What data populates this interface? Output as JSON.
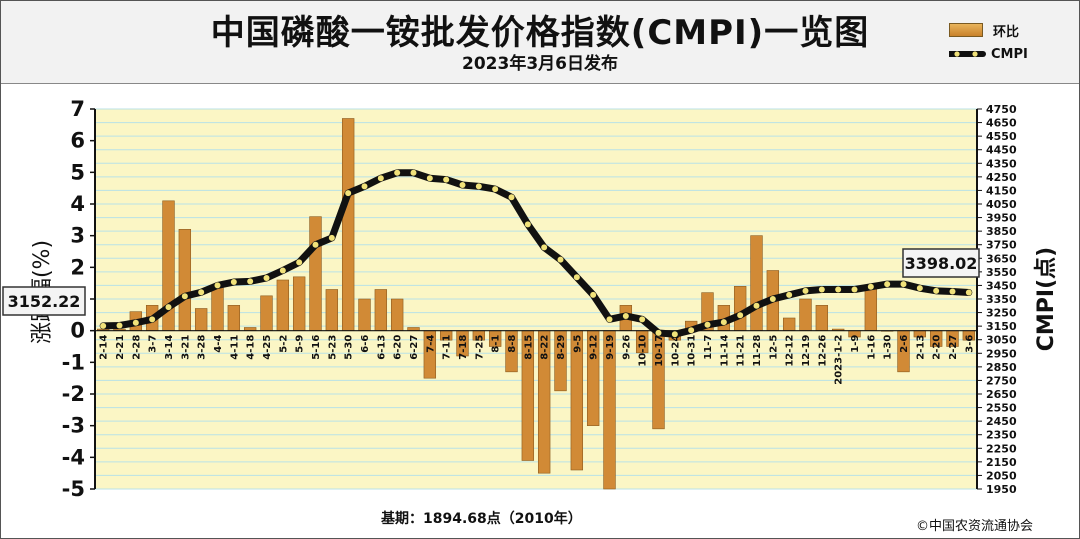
{
  "header": {
    "title": "中国磷酸一铵批发价格指数(CMPI)一览图",
    "subtitle": "2023年3月6日发布"
  },
  "legend": {
    "bar_label": "环比",
    "line_label": "CMPI"
  },
  "footer": {
    "base_note": "基期：1894.68点（2010年）",
    "copyright": "©中国农资流通协会"
  },
  "colors": {
    "plot_bg": "#fbf6c5",
    "grid": "#b9e2e6",
    "bar": "#d18a36",
    "line": "#111111",
    "marker": "#f1e27a"
  },
  "chart_data": {
    "type": "bar",
    "categories": [
      "2-14",
      "2-21",
      "2-28",
      "3-7",
      "3-14",
      "3-21",
      "3-28",
      "4-4",
      "4-11",
      "4-18",
      "4-25",
      "5-2",
      "5-9",
      "5-16",
      "5-23",
      "5-30",
      "6-6",
      "6-13",
      "6-20",
      "6-27",
      "7-4",
      "7-11",
      "7-18",
      "7-25",
      "8-1",
      "8-8",
      "8-15",
      "8-22",
      "8-29",
      "9-5",
      "9-12",
      "9-19",
      "9-26",
      "10-10",
      "10-17",
      "10-24",
      "10-31",
      "11-7",
      "11-14",
      "11-21",
      "11-28",
      "12-5",
      "12-12",
      "12-19",
      "12-26",
      "2023-1-2",
      "1-9",
      "1-16",
      "1-30",
      "2-6",
      "2-13",
      "2-20",
      "2-27",
      "3-6"
    ],
    "series": [
      {
        "name": "环比",
        "axis": "left",
        "values": [
          0.05,
          0.05,
          0.6,
          0.8,
          4.1,
          3.2,
          0.7,
          1.4,
          0.8,
          0.1,
          1.1,
          1.6,
          1.7,
          3.6,
          1.3,
          6.7,
          1.0,
          1.3,
          1.0,
          0.1,
          -1.5,
          -0.3,
          -0.8,
          -0.3,
          -0.5,
          -1.3,
          -4.1,
          -4.5,
          -1.9,
          -4.4,
          -3.0,
          -5.0,
          0.8,
          -0.7,
          -3.1,
          -0.3,
          0.3,
          1.2,
          0.8,
          1.4,
          3.0,
          1.9,
          0.4,
          1.0,
          0.8,
          0.05,
          -0.2,
          1.4,
          0.0,
          -1.3,
          -0.2,
          -0.5,
          -0.5,
          -0.3
        ]
      },
      {
        "name": "CMPI",
        "type": "line",
        "axis": "right",
        "values": [
          3152.22,
          3155,
          3175,
          3200,
          3290,
          3370,
          3400,
          3450,
          3475,
          3480,
          3505,
          3560,
          3620,
          3750,
          3800,
          4130,
          4180,
          4240,
          4280,
          4280,
          4240,
          4230,
          4190,
          4180,
          4160,
          4100,
          3900,
          3730,
          3640,
          3510,
          3380,
          3200,
          3225,
          3200,
          3100,
          3090,
          3120,
          3160,
          3180,
          3230,
          3300,
          3350,
          3380,
          3410,
          3420,
          3420,
          3420,
          3440,
          3460,
          3460,
          3430,
          3410,
          3405,
          3398.02
        ]
      }
    ],
    "left_axis": {
      "label": "涨跌幅(%)",
      "min": -5,
      "max": 7,
      "ticks": [
        -5,
        -4,
        -3,
        -2,
        -1,
        0,
        1,
        2,
        3,
        4,
        5,
        6,
        7
      ]
    },
    "right_axis": {
      "label": "CMPI(点)",
      "min": 1950,
      "max": 4750,
      "step": 100
    },
    "annotations": {
      "start_value": "3152.22",
      "end_value": "3398.02"
    },
    "legend_position": "top-right",
    "grid": true
  }
}
